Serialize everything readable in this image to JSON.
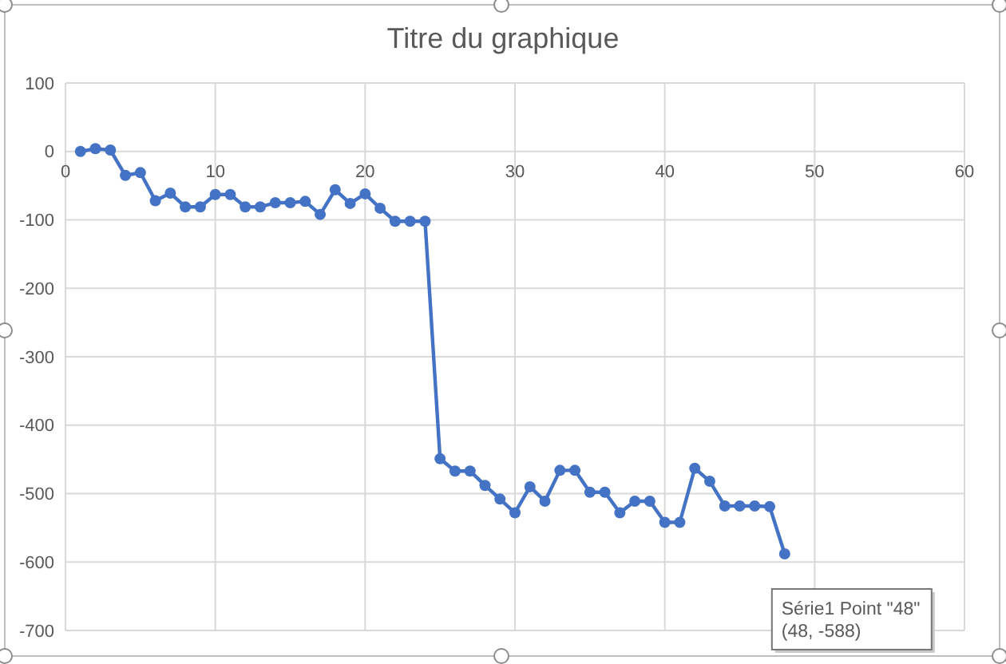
{
  "chart_data": {
    "type": "line",
    "title": "Titre du graphique",
    "x": [
      1,
      2,
      3,
      4,
      5,
      6,
      7,
      8,
      9,
      10,
      11,
      12,
      13,
      14,
      15,
      16,
      17,
      18,
      19,
      20,
      21,
      22,
      23,
      24,
      25,
      26,
      27,
      28,
      29,
      30,
      31,
      32,
      33,
      34,
      35,
      36,
      37,
      38,
      39,
      40,
      41,
      42,
      43,
      44,
      45,
      46,
      47,
      48
    ],
    "values": [
      0,
      4,
      2,
      -35,
      -31,
      -72,
      -61,
      -81,
      -81,
      -63,
      -63,
      -81,
      -81,
      -75,
      -75,
      -73,
      -92,
      -56,
      -76,
      -62,
      -83,
      -102,
      -102,
      -102,
      -449,
      -467,
      -467,
      -488,
      -508,
      -528,
      -490,
      -511,
      -466,
      -466,
      -498,
      -498,
      -528,
      -511,
      -511,
      -542,
      -542,
      -463,
      -482,
      -518,
      -518,
      -518,
      -519,
      -588
    ],
    "color": "#4472c4",
    "marker": "circle",
    "line_style": "solid",
    "xlim": [
      0,
      60
    ],
    "xticks": [
      0,
      10,
      20,
      30,
      40,
      50,
      60
    ],
    "ylim": [
      -700,
      100
    ],
    "yticks": [
      -700,
      -600,
      -500,
      -400,
      -300,
      -200,
      -100,
      0,
      100
    ],
    "grid": true,
    "annotations": [
      {
        "text": "Série1 Point \"48\"\n(48, -588)",
        "x": 48,
        "y": -588
      }
    ]
  }
}
